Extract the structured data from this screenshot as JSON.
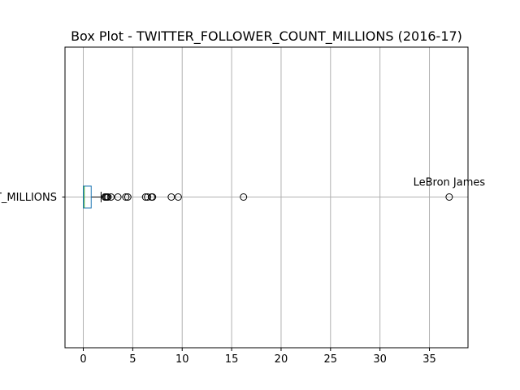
{
  "chart_data": {
    "type": "box",
    "orientation": "horizontal",
    "title": "Box Plot - TWITTER_FOLLOWER_COUNT_MILLIONS (2016-17)",
    "y_category_label": "TWITTER_FOLLOWER_COUNT_MILLIONS",
    "xlabel": "",
    "ylabel": "",
    "xlim": [
      -1.85,
      38.9
    ],
    "xticks": [
      0,
      5,
      10,
      15,
      20,
      25,
      30,
      35
    ],
    "grid": true,
    "box": {
      "whisker_low": 0.0,
      "q1": 0.0,
      "median": 0.1,
      "q3": 0.8,
      "whisker_high": 1.8
    },
    "outliers": [
      2.2,
      2.3,
      2.4,
      2.5,
      2.8,
      3.5,
      4.3,
      4.5,
      6.3,
      6.5,
      6.9,
      7.0,
      8.9,
      9.6,
      16.2,
      37.0
    ],
    "annotations": [
      {
        "text": "LeBron James",
        "x": 37.0
      }
    ],
    "colors": {
      "box": "#1f77b4",
      "median": "#2ca02c",
      "whisker": "#000000",
      "grid": "#b0b0b0"
    }
  }
}
